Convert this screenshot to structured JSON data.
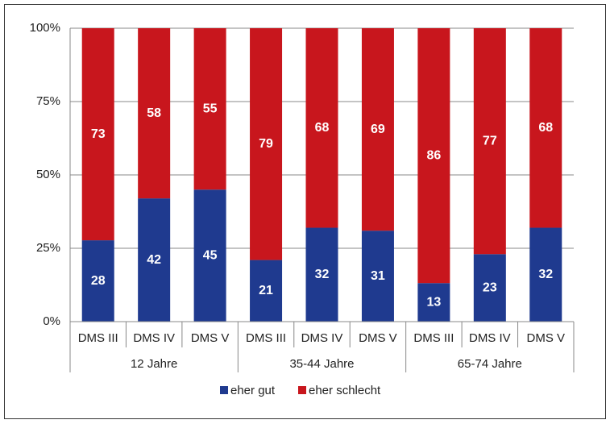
{
  "chart_data": {
    "type": "bar",
    "stacking": "percent",
    "categories": [
      "DMS III",
      "DMS IV",
      "DMS V",
      "DMS III",
      "DMS IV",
      "DMS V",
      "DMS III",
      "DMS IV",
      "DMS V"
    ],
    "groups": [
      "12 Jahre",
      "35-44 Jahre",
      "65-74 Jahre"
    ],
    "series": [
      {
        "name": "eher gut",
        "color": "#1f3a8f",
        "values": [
          28,
          42,
          45,
          21,
          32,
          31,
          13,
          23,
          32
        ]
      },
      {
        "name": "eher schlecht",
        "color": "#c8161d",
        "values": [
          73,
          58,
          55,
          79,
          68,
          69,
          86,
          77,
          68
        ]
      }
    ],
    "ylim": [
      0,
      100
    ],
    "yticks": [
      {
        "value": 0,
        "label": "0%"
      },
      {
        "value": 25,
        "label": "25%"
      },
      {
        "value": 50,
        "label": "50%"
      },
      {
        "value": 75,
        "label": "75%"
      },
      {
        "value": 100,
        "label": "100%"
      }
    ],
    "grid": true,
    "legend": "bottom"
  }
}
